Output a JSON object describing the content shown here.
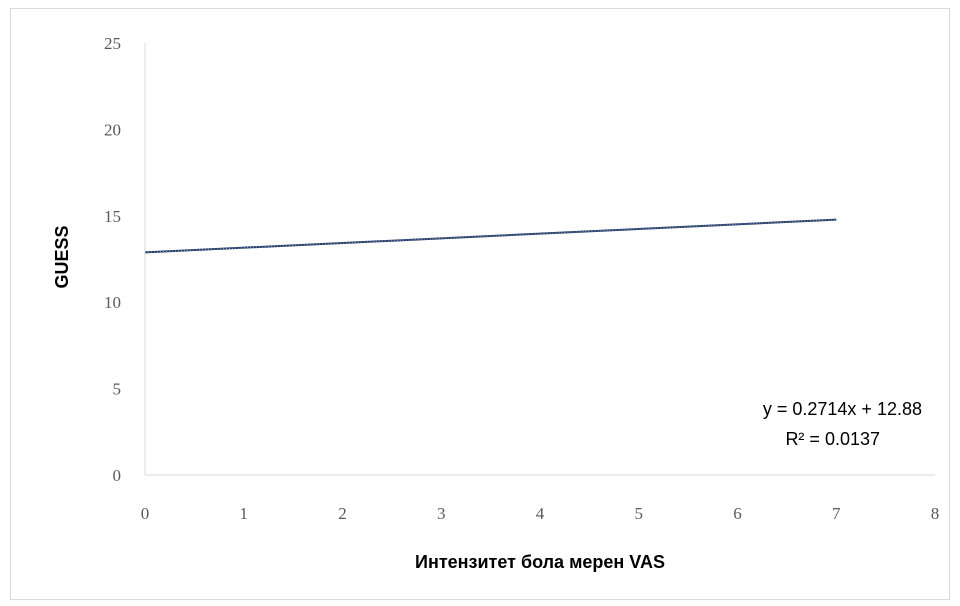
{
  "chart_data": {
    "type": "line",
    "title": "",
    "xlabel": "Интензитет бола мерен VAS",
    "ylabel": "GUESS",
    "xlim": [
      0,
      8
    ],
    "ylim": [
      0,
      25
    ],
    "x_ticks": [
      "0",
      "1",
      "2",
      "3",
      "4",
      "5",
      "6",
      "7",
      "8"
    ],
    "y_ticks": [
      "0",
      "5",
      "10",
      "15",
      "20",
      "25"
    ],
    "grid": false,
    "legend": "none",
    "series": [
      {
        "x": [
          0,
          7
        ],
        "y": [
          12.88,
          14.78
        ],
        "color": "#1f3864"
      }
    ],
    "annotations": {
      "equation": "y = 0.2714x + 12.88",
      "r_squared": "R² = 0.0137"
    },
    "axis_color": "#d9d9d9"
  }
}
